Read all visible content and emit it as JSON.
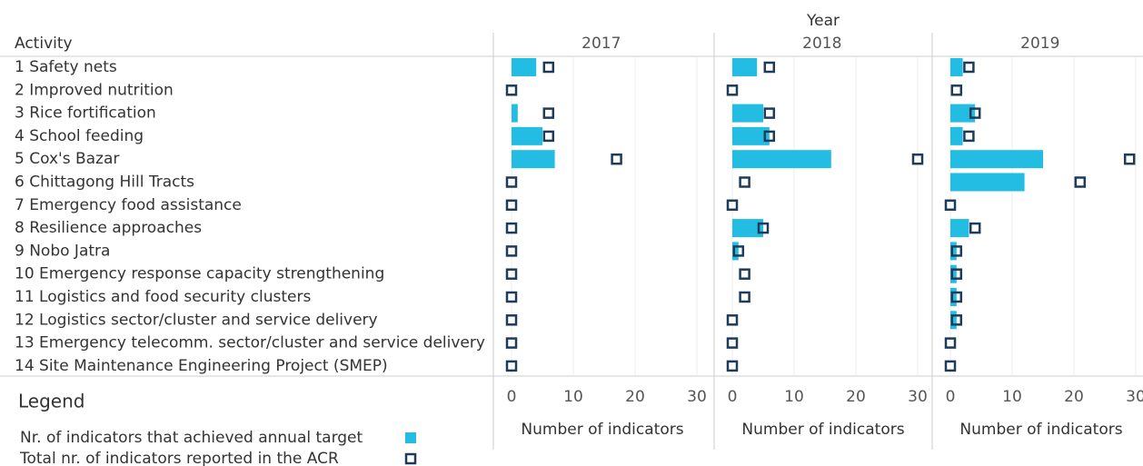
{
  "chart_data": {
    "type": "bar",
    "header": "Year",
    "row_header": "Activity",
    "categories": [
      "1 Safety nets",
      "2 Improved nutrition",
      "3 Rice fortification",
      "4 School feeding",
      "5 Cox's Bazar",
      "6 Chittagong Hill Tracts",
      "7 Emergency food assistance",
      "8 Resilience approaches",
      "9 Nobo Jatra",
      "10 Emergency response capacity strengthening",
      "11 Logistics and food security clusters",
      "12 Logistics sector/cluster and service delivery",
      "13 Emergency telecomm. sector/cluster and service delivery",
      "14 Site Maintenance Engineering Project (SMEP)"
    ],
    "series": [
      {
        "name": "Nr. of indicators that achieved annual target",
        "color": "#23bce3",
        "marker": "bar"
      },
      {
        "name": "Total nr. of indicators reported in the ACR",
        "color": "#1f3b5a",
        "marker": "square"
      }
    ],
    "panels": [
      {
        "title": "2017",
        "series": [
          {
            "values": [
              4,
              0,
              1,
              5,
              7,
              0,
              0,
              0,
              0,
              0,
              0,
              0,
              0,
              0
            ]
          },
          {
            "values": [
              6,
              0,
              6,
              6,
              17,
              0,
              0,
              0,
              0,
              0,
              0,
              0,
              0,
              0
            ]
          }
        ]
      },
      {
        "title": "2018",
        "series": [
          {
            "values": [
              4,
              0,
              5,
              6,
              16,
              0,
              0,
              5,
              1,
              0,
              0,
              0,
              0,
              0
            ]
          },
          {
            "values": [
              6,
              0,
              6,
              6,
              30,
              2,
              0,
              5,
              1,
              2,
              2,
              0,
              0,
              0
            ]
          }
        ]
      },
      {
        "title": "2019",
        "series": [
          {
            "values": [
              2,
              0,
              4,
              2,
              15,
              12,
              0,
              3,
              1,
              1,
              1,
              1,
              0,
              0
            ]
          },
          {
            "values": [
              3,
              1,
              4,
              3,
              29,
              21,
              0,
              4,
              1,
              1,
              1,
              1,
              0,
              0
            ]
          }
        ]
      }
    ],
    "xlim": [
      0,
      32
    ],
    "xticks": [
      0,
      10,
      20,
      30
    ],
    "xlabel": "Number of indicators",
    "legend_title": "Legend",
    "grid": true
  }
}
